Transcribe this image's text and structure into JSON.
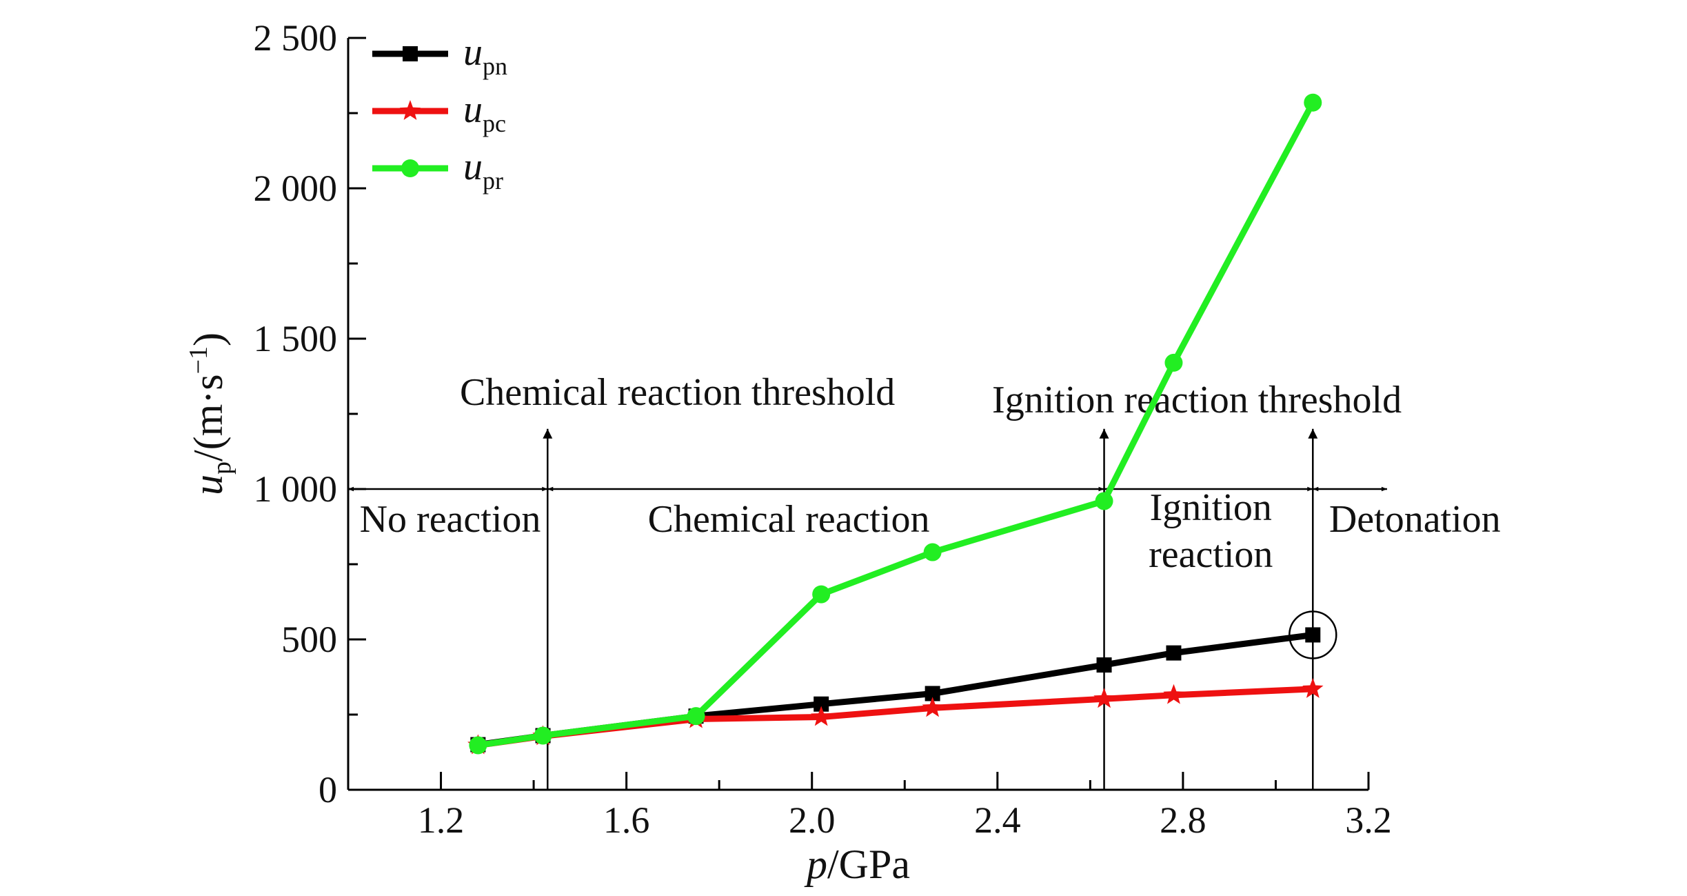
{
  "chart_data": {
    "type": "line",
    "xlabel": {
      "main": "p",
      "rest": "/GPa"
    },
    "ylabel": {
      "main": "u",
      "sub": "p",
      "rest": "/(m·s",
      "sup": "−1",
      "close": ")"
    },
    "xlim": [
      1.0,
      3.2
    ],
    "ylim": [
      0,
      2500
    ],
    "x_ticks": [
      1.2,
      1.6,
      2.0,
      2.4,
      2.8,
      3.2
    ],
    "x_tick_labels": [
      "1.2",
      "1.6",
      "2.0",
      "2.4",
      "2.8",
      "3.2"
    ],
    "y_ticks": [
      0,
      500,
      1000,
      1500,
      2000,
      2500
    ],
    "y_tick_labels": [
      "0",
      "500",
      "1 000",
      "1 500",
      "2 000",
      "2 500"
    ],
    "legend_position": "top-left",
    "series": [
      {
        "name": "u",
        "name_sub": "pn",
        "color": "#000000",
        "marker": "square",
        "x": [
          1.28,
          1.42,
          1.75,
          2.02,
          2.26,
          2.63,
          2.78,
          3.08
        ],
        "y": [
          150,
          180,
          245,
          285,
          320,
          415,
          455,
          515
        ]
      },
      {
        "name": "u",
        "name_sub": "pc",
        "color": "#ee1111",
        "marker": "star",
        "x": [
          1.28,
          1.42,
          1.75,
          2.02,
          2.26,
          2.63,
          2.78,
          3.08
        ],
        "y": [
          148,
          178,
          235,
          242,
          272,
          302,
          315,
          335
        ]
      },
      {
        "name": "u",
        "name_sub": "pr",
        "color": "#22ee22",
        "marker": "circle",
        "x": [
          1.28,
          1.42,
          1.75,
          2.02,
          2.26,
          2.63,
          2.78,
          3.08
        ],
        "y": [
          148,
          180,
          245,
          650,
          790,
          960,
          1420,
          2285
        ]
      }
    ],
    "thresholds": [
      {
        "x": 1.43,
        "y_top": 1200
      },
      {
        "x": 2.63,
        "y_top": 1200
      },
      {
        "x": 3.08,
        "y_top": 1200
      }
    ],
    "regions": [
      {
        "label": "No reaction",
        "x_from": 1.0,
        "x_to": 1.43,
        "x_text": 1.22
      },
      {
        "label": "Chemical reaction",
        "x_from": 1.43,
        "x_to": 2.63,
        "x_text": 1.95
      },
      {
        "label_lines": [
          "Ignition",
          "reaction"
        ],
        "x_from": 2.63,
        "x_to": 3.08,
        "x_text": 2.86
      },
      {
        "label": "Detonation",
        "x_from": 3.08,
        "x_to": 3.24,
        "x_text": 3.3
      }
    ],
    "annotations": [
      {
        "text": "Chemical reaction threshold",
        "x_text": 1.71,
        "y_text": 1280
      },
      {
        "text": "Ignition reaction threshold",
        "x_text": 2.83,
        "y_text": 1255
      }
    ],
    "highlighted_point": {
      "series": "pn",
      "x": 3.08,
      "y": 515
    }
  }
}
